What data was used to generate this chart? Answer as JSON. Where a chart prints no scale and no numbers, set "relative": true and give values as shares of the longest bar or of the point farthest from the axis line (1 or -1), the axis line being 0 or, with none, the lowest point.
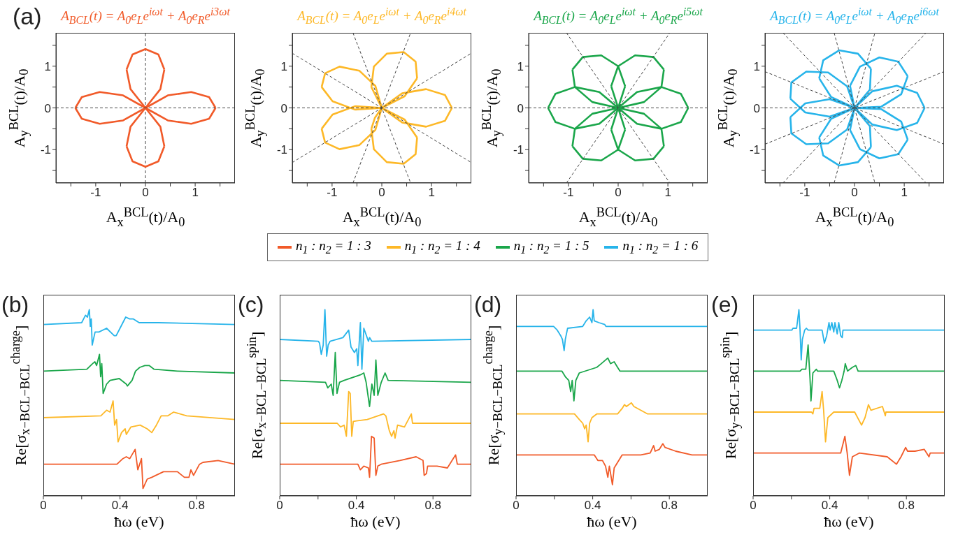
{
  "chart_data": [
    {
      "type": "line",
      "title": "A$_{BCL}$(t) = A$_{0}$e$_{L}$e$^{iωt}$ + A$_{0}$e$_{R}$e$^{i3ωt}$",
      "xlabel": "A$_{x}$$^{BCL}$(t)/A$_{0}$",
      "ylabel": "A$_{y}$$^{BCL}$(t)/A$_{0}$",
      "annotations": [
        "(a)"
      ],
      "xlim": [
        -1.8,
        1.8
      ],
      "ylim": [
        -1.8,
        1.8
      ],
      "xticks": [
        {
          "value": -1.5,
          "label": null
        },
        -1,
        {
          "value": -0.5,
          "label": null
        },
        0,
        {
          "value": 0.5,
          "label": null
        },
        1,
        {
          "value": 1.5,
          "label": null
        }
      ],
      "yticks": [
        {
          "value": -1.5,
          "label": null
        },
        -1,
        {
          "value": -0.5,
          "label": null
        },
        0,
        {
          "value": 0.5,
          "label": null
        },
        1,
        {
          "value": 1.5,
          "label": null
        }
      ],
      "ref_lines": [
        {
          "axis": "x",
          "value": 0,
          "line_style": "dashed",
          "color": "#444444"
        }
      ],
      "series": [
        {
          "color": "#f15a29",
          "x": [
            0,
            0.45,
            0.92,
            1.28,
            1.41,
            1.28,
            0.92,
            0.45,
            0,
            0.3,
            0.38,
            0.26,
            0,
            -0.26,
            -0.38,
            -0.3,
            0,
            -0.45,
            -0.92,
            -1.28,
            -1.41,
            -1.28,
            -0.92,
            -0.45,
            0,
            -0.3,
            -0.38,
            -0.26,
            0,
            0.26,
            0.38,
            0.3,
            0
          ],
          "values": [
            0,
            -0.3,
            -0.38,
            -0.26,
            0,
            0.26,
            0.38,
            0.3,
            0,
            0.45,
            0.92,
            1.28,
            1.41,
            1.28,
            0.92,
            0.45,
            0,
            0.3,
            0.38,
            0.26,
            0,
            -0.26,
            -0.38,
            -0.3,
            0,
            -0.45,
            -0.92,
            -1.28,
            -1.41,
            -1.28,
            -0.92,
            -0.45,
            0
          ]
        },
        {
          "color": "#444444",
          "line_style": "dashed",
          "x": [
            -1.8,
            1.8
          ],
          "values": [
            0,
            0
          ]
        }
      ]
    },
    {
      "type": "line",
      "title": "A$_{BCL}$(t) = A$_{0}$e$_{L}$e$^{iωt}$ + A$_{0}$e$_{R}$e$^{i4ωt}$",
      "xlabel": "A$_{x}$$^{BCL}$(t)/A$_{0}$",
      "ylabel": "A$_{y}$$^{BCL}$(t)/A$_{0}$",
      "xlim": [
        -1.8,
        1.8
      ],
      "ylim": [
        -1.8,
        1.8
      ],
      "xticks": [
        {
          "value": -1.5,
          "label": null
        },
        -1,
        {
          "value": -0.5,
          "label": null
        },
        0,
        {
          "value": 0.5,
          "label": null
        },
        1,
        {
          "value": 1.5,
          "label": null
        }
      ],
      "yticks": [
        {
          "value": -1.5,
          "label": null
        },
        -1,
        {
          "value": -0.5,
          "label": null
        },
        0,
        {
          "value": 0.5,
          "label": null
        },
        1,
        {
          "value": 1.5,
          "label": null
        }
      ],
      "series": [
        {
          "color": "#fdb827",
          "x": [
            0,
            0.41,
            0.89,
            1.27,
            1.41,
            1.27,
            0.89,
            0.41,
            0,
            0.46,
            0.71,
            0.68,
            0.44,
            0.1,
            -0.16,
            -0.21,
            0,
            -0.13,
            -0.45,
            -0.85,
            -1.14,
            -1.21,
            -0.99,
            -0.54,
            0,
            -0.54,
            -0.99,
            -1.21,
            -1.14,
            -0.85,
            -0.45,
            -0.13,
            0,
            -0.14,
            -0.21,
            -0.16,
            0.1,
            0.44,
            0.68,
            0.71,
            0.46,
            0
          ],
          "values": [
            0,
            -0.35,
            -0.45,
            -0.31,
            0,
            0.31,
            0.45,
            0.35,
            0,
            0.28,
            0.71,
            1.11,
            1.34,
            1.3,
            0.99,
            0.5,
            0,
            0.53,
            0.89,
            0.99,
            0.83,
            0.5,
            0.16,
            -0.04,
            0,
            0.04,
            -0.16,
            -0.5,
            -0.83,
            -0.99,
            -0.89,
            -0.53,
            0,
            -0.24,
            -0.5,
            -0.99,
            -1.3,
            -1.34,
            -1.11,
            -0.71,
            -0.28,
            0
          ]
        },
        {
          "color": "#444444",
          "line_style": "dashed",
          "x": [
            -1.8,
            1.8
          ],
          "values": [
            0,
            0
          ]
        },
        {
          "color": "#444444",
          "line_style": "dashed",
          "x": [
            -1.8,
            1.8
          ],
          "values": [
            -1.31,
            1.31
          ]
        },
        {
          "color": "#444444",
          "line_style": "dashed",
          "x": [
            -0.58,
            0.58
          ],
          "values": [
            -1.8,
            1.8
          ]
        },
        {
          "color": "#444444",
          "line_style": "dashed",
          "x": [
            -0.58,
            0.58
          ],
          "values": [
            1.8,
            -1.8
          ]
        },
        {
          "color": "#444444",
          "line_style": "dashed",
          "x": [
            -1.8,
            1.8
          ],
          "values": [
            1.31,
            -1.31
          ]
        }
      ]
    },
    {
      "type": "line",
      "title": "A$_{BCL}$(t) = A$_{0}$e$_{L}$e$^{iωt}$ + A$_{0}$e$_{R}$e$^{i5ωt}$",
      "xlabel": "A$_{x}$$^{BCL}$(t)/A$_{0}$",
      "ylabel": "A$_{y}$$^{BCL}$(t)/A$_{0}$",
      "xlim": [
        -1.8,
        1.8
      ],
      "ylim": [
        -1.8,
        1.8
      ],
      "xticks": [
        {
          "value": -1.5,
          "label": null
        },
        -1,
        {
          "value": -0.5,
          "label": null
        },
        0,
        {
          "value": 0.5,
          "label": null
        },
        1,
        {
          "value": 1.5,
          "label": null
        }
      ],
      "yticks": [
        {
          "value": -1.5,
          "label": null
        },
        -1,
        {
          "value": -0.5,
          "label": null
        },
        0,
        {
          "value": 0.5,
          "label": null
        },
        1,
        {
          "value": 1.5,
          "label": null
        }
      ],
      "series": [
        {
          "color": "#1aa64a",
          "x": [
            0,
            0.38,
            0.87,
            1.26,
            1.41,
            1.26,
            0.87,
            0.38,
            0,
            0.52,
            0.87,
            0.92,
            0.71,
            0.34,
            0,
            -0.14,
            0,
            0.14,
            0,
            -0.34,
            -0.71,
            -0.92,
            -0.87,
            -0.52,
            0,
            -0.38,
            -0.87,
            -1.26,
            -1.41,
            -1.26,
            -0.87,
            -0.38,
            0,
            -0.52,
            -0.87,
            -0.92,
            -0.71,
            -0.34,
            0,
            0.14,
            0,
            -0.14,
            0,
            0.34,
            0.71,
            0.92,
            0.87,
            0.52,
            0
          ],
          "values": [
            0,
            -0.38,
            -0.5,
            -0.34,
            0,
            0.34,
            0.5,
            0.38,
            0,
            0.14,
            0.5,
            0.92,
            1.22,
            1.26,
            1.0,
            0.52,
            0,
            0.52,
            1.0,
            1.26,
            1.22,
            0.92,
            0.5,
            0.14,
            0,
            0.38,
            0.5,
            0.34,
            0,
            -0.34,
            -0.5,
            -0.38,
            0,
            -0.14,
            -0.5,
            -0.92,
            -1.22,
            -1.26,
            -1,
            -0.52,
            0,
            -0.52,
            -1,
            -1.26,
            -1.22,
            -0.92,
            -0.5,
            -0.14,
            0
          ]
        },
        {
          "color": "#444444",
          "line_style": "dashed",
          "x": [
            -1.8,
            1.8
          ],
          "values": [
            0,
            0
          ]
        },
        {
          "color": "#444444",
          "line_style": "dashed",
          "x": [
            -1.04,
            1.04
          ],
          "values": [
            -1.8,
            1.8
          ]
        },
        {
          "color": "#444444",
          "line_style": "dashed",
          "x": [
            -1.04,
            1.04
          ],
          "values": [
            1.8,
            -1.8
          ]
        }
      ]
    },
    {
      "type": "line",
      "title": "A$_{BCL}$(t) = A$_{0}$e$_{L}$e$^{iωt}$ + A$_{0}$e$_{R}$e$^{i6ωt}$",
      "xlabel": "A$_{x}$$^{BCL}$(t)/A$_{0}$",
      "ylabel": "A$_{y}$$^{BCL}$(t)/A$_{0}$",
      "xlim": [
        -1.8,
        1.8
      ],
      "ylim": [
        -1.8,
        1.8
      ],
      "xticks": [
        {
          "value": -1.5,
          "label": null
        },
        -1,
        {
          "value": -0.5,
          "label": null
        },
        0,
        {
          "value": 0.5,
          "label": null
        },
        1,
        {
          "value": 1.5,
          "label": null
        }
      ],
      "yticks": [
        {
          "value": -1.5,
          "label": null
        },
        -1,
        {
          "value": -0.5,
          "label": null
        },
        0,
        {
          "value": 0.5,
          "label": null
        },
        1,
        {
          "value": 1.5,
          "label": null
        }
      ],
      "series": [
        {
          "color": "#27b4ea",
          "x": [
            0,
            0.36,
            0.85,
            1.26,
            1.41,
            1.26,
            0.85,
            0.36,
            0,
            0.54,
            0.94,
            1.07,
            0.88,
            0.5,
            0.11,
            -0.09,
            0,
            0.31,
            0.33,
            0.07,
            -0.31,
            -0.63,
            -0.71,
            -0.47,
            0,
            -0.15,
            -0.53,
            -0.97,
            -1.27,
            -1.29,
            -0.99,
            -0.5,
            0,
            -0.15,
            -0.53,
            -0.97,
            -1.27,
            -1.29,
            -0.99,
            -0.5,
            0,
            0.31,
            0.33,
            0.07,
            -0.31,
            -0.63,
            -0.71,
            -0.47,
            0,
            0.54,
            0.94,
            1.07,
            0.88,
            0.5,
            0.11,
            -0.09,
            0
          ],
          "values": [
            0,
            -0.4,
            -0.53,
            -0.36,
            0,
            0.36,
            0.53,
            0.4,
            0,
            0.03,
            0.33,
            0.76,
            1.11,
            1.21,
            0.99,
            0.53,
            0,
            0.44,
            0.94,
            1.3,
            1.38,
            1.14,
            0.71,
            0.26,
            0,
            0.52,
            0.85,
            0.87,
            0.61,
            0.22,
            -0.11,
            -0.21,
            0,
            -0.52,
            -0.85,
            -0.87,
            -0.61,
            -0.22,
            0.11,
            0.21,
            0,
            -0.44,
            -0.94,
            -1.3,
            -1.38,
            -1.14,
            -0.71,
            -0.26,
            0,
            -0.03,
            -0.33,
            -0.76,
            -1.11,
            -1.21,
            -0.99,
            -0.53,
            0
          ]
        },
        {
          "color": "#444444",
          "line_style": "dashed",
          "x": [
            -1.8,
            1.8
          ],
          "values": [
            0,
            0
          ]
        },
        {
          "color": "#444444",
          "line_style": "dashed",
          "x": [
            -1.8,
            1.8
          ],
          "values": [
            -0.87,
            0.87
          ]
        },
        {
          "color": "#444444",
          "line_style": "dashed",
          "x": [
            -1.44,
            1.44
          ],
          "values": [
            -1.8,
            1.8
          ]
        },
        {
          "color": "#444444",
          "line_style": "dashed",
          "x": [
            -0.41,
            0.41
          ],
          "values": [
            -1.8,
            1.8
          ]
        },
        {
          "color": "#444444",
          "line_style": "dashed",
          "x": [
            -0.41,
            0.41
          ],
          "values": [
            1.8,
            -1.8
          ]
        },
        {
          "color": "#444444",
          "line_style": "dashed",
          "x": [
            -1.44,
            1.44
          ],
          "values": [
            1.8,
            -1.8
          ]
        },
        {
          "color": "#444444",
          "line_style": "dashed",
          "x": [
            -1.8,
            1.8
          ],
          "values": [
            0.87,
            -0.87
          ]
        }
      ]
    },
    {
      "type": "line",
      "relative": true,
      "xlabel": "ħω (eV)",
      "ylabel": "Re[σ$_{x−BCL−BCL}$$^{charge}$]",
      "annotations": [
        "(b)"
      ],
      "legend": "top",
      "xlim": [
        0,
        1
      ],
      "xticks": [
        0,
        {
          "value": 0.2,
          "label": null
        },
        0.4,
        {
          "value": 0.6,
          "label": null
        },
        0.8
      ],
      "series": [
        {
          "name": "n$_{1}$ : n$_{2}$ = 1 : 3",
          "color": "#f15a29",
          "x": [
            0,
            0.384,
            0.415,
            0.433,
            0.451,
            0.479,
            0.493,
            0.512,
            0.52,
            0.542,
            0.566,
            0.627,
            0.7,
            0.736,
            0.76,
            0.77,
            0.784,
            0.815,
            0.833,
            0.912,
            1
          ],
          "values": [
            0.17,
            0.17,
            0.2,
            0.21,
            0.2,
            0.25,
            0.14,
            0.2,
            0.04,
            0.09,
            0.1,
            0.13,
            0.13,
            0.1,
            0.1,
            0.14,
            0.11,
            0.17,
            0.18,
            0.19,
            0.17
          ]
        },
        {
          "name": "n$_{1}$ : n$_{2}$ = 1 : 4",
          "color": "#fdb827",
          "x": [
            0,
            0.3,
            0.33,
            0.348,
            0.364,
            0.372,
            0.382,
            0.39,
            0.408,
            0.427,
            0.433,
            0.457,
            0.505,
            0.542,
            0.566,
            0.59,
            0.615,
            0.65,
            0.68,
            0.748,
            1
          ],
          "values": [
            0.42,
            0.43,
            0.46,
            0.45,
            0.51,
            0.38,
            0.41,
            0.29,
            0.34,
            0.36,
            0.33,
            0.37,
            0.38,
            0.36,
            0.34,
            0.38,
            0.43,
            0.43,
            0.45,
            0.43,
            0.41
          ]
        },
        {
          "name": "n$_{1}$ : n$_{2}$ = 1 : 5",
          "color": "#1aa64a",
          "x": [
            0,
            0.227,
            0.257,
            0.269,
            0.278,
            0.293,
            0.299,
            0.305,
            0.312,
            0.33,
            0.348,
            0.396,
            0.433,
            0.439,
            0.463,
            0.481,
            0.503,
            0.53,
            0.552,
            0.578,
            0.7,
            1
          ],
          "values": [
            0.67,
            0.68,
            0.71,
            0.72,
            0.7,
            0.76,
            0.64,
            0.71,
            0.55,
            0.6,
            0.62,
            0.63,
            0.6,
            0.59,
            0.62,
            0.67,
            0.69,
            0.7,
            0.7,
            0.68,
            0.67,
            0.66
          ]
        },
        {
          "name": "n$_{1}$ : n$_{2}$ = 1 : 6",
          "color": "#27b4ea",
          "x": [
            0,
            0.2,
            0.21,
            0.22,
            0.23,
            0.24,
            0.245,
            0.25,
            0.255,
            0.27,
            0.29,
            0.33,
            0.37,
            0.38,
            0.4,
            0.43,
            0.45,
            0.47,
            0.5,
            0.6,
            1
          ],
          "values": [
            0.92,
            0.93,
            0.95,
            0.97,
            0.96,
            1.0,
            0.91,
            0.95,
            0.81,
            0.88,
            0.88,
            0.9,
            0.86,
            0.86,
            0.9,
            0.96,
            0.95,
            0.95,
            0.93,
            0.93,
            0.92
          ]
        }
      ]
    },
    {
      "type": "line",
      "relative": true,
      "xlabel": "ħω (eV)",
      "ylabel": "Re[σ$_{x−BCL−BCL}$$^{spin}$]",
      "annotations": [
        "(c)"
      ],
      "xlim": [
        0,
        1
      ],
      "xticks": [
        0,
        {
          "value": 0.2,
          "label": null
        },
        0.4,
        {
          "value": 0.6,
          "label": null
        },
        0.8
      ],
      "series": [
        {
          "color": "#f15a29",
          "x": [
            0,
            0.408,
            0.421,
            0.439,
            0.463,
            0.469,
            0.479,
            0.493,
            0.502,
            0.512,
            0.53,
            0.627,
            0.712,
            0.748,
            0.754,
            0.766,
            0.772,
            0.821,
            0.875,
            0.918,
            0.927,
            1
          ],
          "values": [
            0.17,
            0.17,
            0.14,
            0.16,
            0.15,
            0.1,
            0.32,
            0.31,
            0.11,
            0.16,
            0.17,
            0.19,
            0.21,
            0.19,
            0.11,
            0.12,
            0.16,
            0.16,
            0.15,
            0.22,
            0.17,
            0.17
          ]
        },
        {
          "color": "#fdb827",
          "x": [
            0,
            0.3,
            0.318,
            0.336,
            0.348,
            0.36,
            0.368,
            0.376,
            0.384,
            0.457,
            0.542,
            0.554,
            0.572,
            0.584,
            0.596,
            0.602,
            0.615,
            0.651,
            0.687,
            0.693,
            1
          ],
          "values": [
            0.39,
            0.39,
            0.37,
            0.38,
            0.32,
            0.56,
            0.55,
            0.32,
            0.4,
            0.41,
            0.44,
            0.43,
            0.35,
            0.32,
            0.35,
            0.31,
            0.38,
            0.37,
            0.44,
            0.39,
            0.39
          ]
        },
        {
          "color": "#1aa64a",
          "x": [
            0,
            0.239,
            0.251,
            0.269,
            0.279,
            0.29,
            0.299,
            0.312,
            0.336,
            0.421,
            0.439,
            0.451,
            0.469,
            0.481,
            0.493,
            0.502,
            0.512,
            0.53,
            0.55,
            0.566,
            1
          ],
          "values": [
            0.62,
            0.61,
            0.58,
            0.6,
            0.54,
            0.77,
            0.55,
            0.61,
            0.62,
            0.65,
            0.66,
            0.61,
            0.48,
            0.6,
            0.54,
            0.73,
            0.54,
            0.61,
            0.66,
            0.62,
            0.61
          ]
        },
        {
          "color": "#27b4ea",
          "x": [
            0,
            0.202,
            0.208,
            0.217,
            0.227,
            0.236,
            0.245,
            0.253,
            0.263,
            0.33,
            0.36,
            0.372,
            0.39,
            0.402,
            0.408,
            0.421,
            0.429,
            0.439,
            0.463,
            0.469,
            0.481,
            1
          ],
          "values": [
            0.84,
            0.83,
            0.82,
            0.76,
            0.81,
            1.0,
            0.75,
            0.81,
            0.83,
            0.85,
            0.89,
            0.8,
            0.77,
            0.79,
            0.7,
            0.93,
            0.68,
            0.9,
            0.83,
            0.85,
            0.83,
            0.84
          ]
        }
      ]
    },
    {
      "type": "line",
      "relative": true,
      "xlabel": "ħω (eV)",
      "ylabel": "Re[σ$_{y−BCL−BCL}$$^{charge}$]",
      "annotations": [
        "(d)"
      ],
      "xlim": [
        0,
        1
      ],
      "xticks": [
        0,
        {
          "value": 0.2,
          "label": null
        },
        0.4,
        {
          "value": 0.6,
          "label": null
        },
        0.8
      ],
      "series": [
        {
          "color": "#f15a29",
          "x": [
            0,
            0.408,
            0.427,
            0.451,
            0.467,
            0.479,
            0.487,
            0.503,
            0.512,
            0.53,
            0.554,
            0.651,
            0.7,
            0.718,
            0.726,
            0.748,
            0.766,
            0.778,
            0.833,
            0.918,
            1
          ],
          "values": [
            0.22,
            0.22,
            0.19,
            0.19,
            0.16,
            0.1,
            0.16,
            0.06,
            0.15,
            0.18,
            0.22,
            0.22,
            0.23,
            0.27,
            0.24,
            0.25,
            0.28,
            0.26,
            0.24,
            0.22,
            0.22
          ]
        },
        {
          "color": "#fdb827",
          "x": [
            0,
            0.305,
            0.33,
            0.348,
            0.358,
            0.366,
            0.376,
            0.384,
            0.396,
            0.421,
            0.53,
            0.554,
            0.566,
            0.576,
            0.602,
            0.615,
            0.687,
            1
          ],
          "values": [
            0.44,
            0.44,
            0.41,
            0.39,
            0.36,
            0.38,
            0.29,
            0.39,
            0.42,
            0.44,
            0.44,
            0.47,
            0.49,
            0.48,
            0.5,
            0.48,
            0.44,
            0.44
          ]
        },
        {
          "color": "#1aa64a",
          "x": [
            0,
            0.239,
            0.257,
            0.275,
            0.285,
            0.293,
            0.302,
            0.312,
            0.33,
            0.421,
            0.445,
            0.479,
            0.493,
            0.512,
            0.53,
            0.542,
            0.554,
            1
          ],
          "values": [
            0.67,
            0.67,
            0.64,
            0.62,
            0.56,
            0.62,
            0.51,
            0.62,
            0.66,
            0.69,
            0.71,
            0.74,
            0.71,
            0.72,
            0.69,
            0.67,
            0.67,
            0.67
          ]
        },
        {
          "color": "#27b4ea",
          "x": [
            0,
            0.196,
            0.215,
            0.233,
            0.242,
            0.251,
            0.257,
            0.269,
            0.348,
            0.366,
            0.384,
            0.396,
            0.402,
            0.408,
            0.433,
            0.463,
            0.469,
            1
          ],
          "values": [
            0.91,
            0.91,
            0.89,
            0.86,
            0.84,
            0.78,
            0.84,
            0.9,
            0.91,
            0.94,
            0.96,
            0.93,
            1.0,
            0.94,
            0.93,
            0.92,
            0.91,
            0.91
          ]
        }
      ]
    },
    {
      "type": "line",
      "relative": true,
      "xlabel": "ħω (eV)",
      "ylabel": "Re[σ$_{y−BCL−BCL}$$^{spin}$]",
      "annotations": [
        "(e)"
      ],
      "xlim": [
        0,
        1
      ],
      "xticks": [
        0,
        {
          "value": 0.2,
          "label": null
        },
        0.4,
        {
          "value": 0.6,
          "label": null
        },
        0.8
      ],
      "series": [
        {
          "color": "#f15a29",
          "x": [
            0,
            0.408,
            0.421,
            0.457,
            0.479,
            0.491,
            0.503,
            0.518,
            0.554,
            0.7,
            0.748,
            0.772,
            0.796,
            0.806,
            0.845,
            0.893,
            0.918,
            0.924,
            1
          ],
          "values": [
            0.23,
            0.23,
            0.23,
            0.23,
            0.32,
            0.23,
            0.11,
            0.21,
            0.23,
            0.21,
            0.17,
            0.21,
            0.26,
            0.24,
            0.24,
            0.25,
            0.21,
            0.23,
            0.23
          ]
        },
        {
          "color": "#fdb827",
          "x": [
            0,
            0.305,
            0.312,
            0.318,
            0.348,
            0.36,
            0.368,
            0.378,
            0.39,
            0.421,
            0.53,
            0.566,
            0.584,
            0.602,
            0.615,
            0.675,
            0.69,
            0.693,
            1
          ],
          "values": [
            0.45,
            0.45,
            0.44,
            0.47,
            0.47,
            0.56,
            0.46,
            0.29,
            0.42,
            0.45,
            0.45,
            0.38,
            0.42,
            0.49,
            0.46,
            0.48,
            0.43,
            0.45,
            0.45
          ]
        },
        {
          "color": "#1aa64a",
          "x": [
            0,
            0.245,
            0.255,
            0.275,
            0.287,
            0.297,
            0.302,
            0.312,
            0.33,
            0.336,
            0.421,
            0.439,
            0.451,
            0.463,
            0.475,
            0.481,
            0.493,
            0.518,
            0.536,
            0.548,
            0.554,
            1
          ],
          "values": [
            0.67,
            0.67,
            0.68,
            0.68,
            0.81,
            0.63,
            0.51,
            0.66,
            0.68,
            0.67,
            0.67,
            0.62,
            0.58,
            0.62,
            0.67,
            0.71,
            0.67,
            0.69,
            0.7,
            0.67,
            0.67,
            0.67
          ]
        },
        {
          "color": "#27b4ea",
          "x": [
            0,
            0.202,
            0.208,
            0.227,
            0.239,
            0.245,
            0.251,
            0.257,
            0.269,
            0.278,
            0.287,
            0.36,
            0.372,
            0.384,
            0.396,
            0.402,
            0.411,
            0.421,
            0.427,
            0.439,
            0.447,
            0.457,
            0.465,
            0.469,
            1
          ],
          "values": [
            0.89,
            0.89,
            0.9,
            0.9,
            1.0,
            0.89,
            0.73,
            0.84,
            0.89,
            0.9,
            0.89,
            0.89,
            0.82,
            0.86,
            0.93,
            0.89,
            0.93,
            0.88,
            0.93,
            0.87,
            0.93,
            0.86,
            0.85,
            0.89,
            0.89
          ]
        }
      ]
    }
  ]
}
